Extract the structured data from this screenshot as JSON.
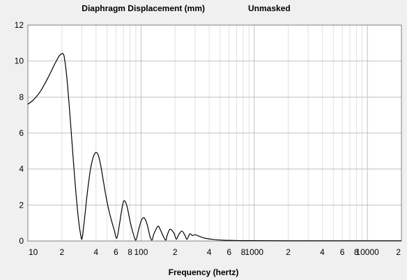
{
  "chart_data": {
    "type": "line",
    "title": "Diaphragm Displacement (mm)",
    "subtitle": "Unmasked",
    "xlabel": "Frequency (hertz)",
    "ylabel": "",
    "x_scale": "log",
    "xlim": [
      10,
      20000
    ],
    "ylim": [
      0,
      12
    ],
    "grid": true,
    "y_ticks": [
      0,
      2,
      4,
      6,
      8,
      10,
      12
    ],
    "x_ticks": [
      {
        "value": 10,
        "label": "10"
      },
      {
        "value": 20,
        "label": "2"
      },
      {
        "value": 40,
        "label": "4"
      },
      {
        "value": 60,
        "label": "6"
      },
      {
        "value": 80,
        "label": "8"
      },
      {
        "value": 100,
        "label": "100"
      },
      {
        "value": 200,
        "label": "2"
      },
      {
        "value": 400,
        "label": "4"
      },
      {
        "value": 600,
        "label": "6"
      },
      {
        "value": 800,
        "label": "8"
      },
      {
        "value": 1000,
        "label": "1000"
      },
      {
        "value": 2000,
        "label": "2"
      },
      {
        "value": 4000,
        "label": "4"
      },
      {
        "value": 6000,
        "label": "6"
      },
      {
        "value": 8000,
        "label": "8"
      },
      {
        "value": 10000,
        "label": "10000"
      },
      {
        "value": 20000,
        "label": "2"
      }
    ],
    "colors": {
      "line": "#000000",
      "grid_minor": "#e0e0e0",
      "grid_major": "#c0c0c0",
      "plot_bg": "#ffffff",
      "frame": "#808080"
    },
    "series": [
      {
        "x": [
          10,
          11,
          12,
          13,
          14,
          15,
          16,
          17,
          18,
          19,
          20,
          20.5,
          21,
          22,
          23,
          24,
          25,
          26,
          27,
          28,
          29,
          30,
          31,
          32,
          33,
          34,
          35,
          36,
          38,
          40,
          42,
          44,
          46,
          48,
          50,
          52,
          55,
          58,
          61,
          64,
          67,
          70,
          73,
          76,
          80,
          85,
          90,
          95,
          100,
          105,
          110,
          115,
          120,
          125,
          130,
          140,
          145,
          155,
          165,
          170,
          180,
          195,
          205,
          215,
          230,
          245,
          255,
          270,
          285,
          300,
          330,
          370,
          420,
          480,
          550,
          650,
          800,
          1000,
          2000,
          5000,
          10000,
          20000
        ],
        "y": [
          7.6,
          7.8,
          8.05,
          8.35,
          8.7,
          9.05,
          9.4,
          9.75,
          10.05,
          10.3,
          10.42,
          10.4,
          10.2,
          9.2,
          7.8,
          6.3,
          4.8,
          3.4,
          2.2,
          1.2,
          0.5,
          0.1,
          0.7,
          1.5,
          2.3,
          3.0,
          3.6,
          4.1,
          4.7,
          4.92,
          4.75,
          4.2,
          3.5,
          2.8,
          2.2,
          1.7,
          1.1,
          0.6,
          0.15,
          0.8,
          1.6,
          2.2,
          2.15,
          1.8,
          1.1,
          0.45,
          0.05,
          0.6,
          1.1,
          1.3,
          1.15,
          0.75,
          0.25,
          0.05,
          0.4,
          0.8,
          0.75,
          0.35,
          0.05,
          0.3,
          0.65,
          0.45,
          0.1,
          0.35,
          0.55,
          0.3,
          0.1,
          0.4,
          0.3,
          0.35,
          0.25,
          0.15,
          0.1,
          0.06,
          0.04,
          0.03,
          0.02,
          0.02,
          0.01,
          0.01,
          0.01,
          0.01
        ]
      }
    ]
  }
}
